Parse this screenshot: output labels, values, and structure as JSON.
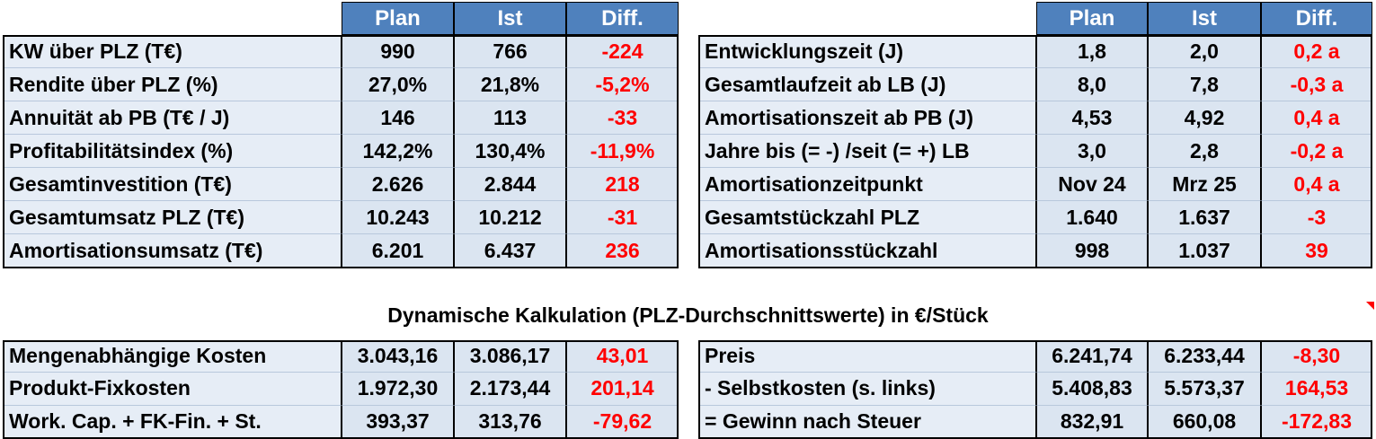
{
  "top_left": {
    "header": [
      "Plan",
      "Ist",
      "Diff."
    ],
    "rows": [
      [
        "KW über PLZ (T€)",
        "990",
        "766",
        "-224"
      ],
      [
        "Rendite über PLZ (%)",
        "27,0%",
        "21,8%",
        "-5,2%"
      ],
      [
        "Annuität ab PB (T€ / J)",
        "146",
        "113",
        "-33"
      ],
      [
        "Profitabilitätsindex (%)",
        "142,2%",
        "130,4%",
        "-11,9%"
      ],
      [
        "Gesamtinvestition (T€)",
        "2.626",
        "2.844",
        "218"
      ],
      [
        "Gesamtumsatz PLZ (T€)",
        "10.243",
        "10.212",
        "-31"
      ],
      [
        "Amortisationsumsatz (T€)",
        "6.201",
        "6.437",
        "236"
      ]
    ]
  },
  "top_right": {
    "header": [
      "Plan",
      "Ist",
      "Diff."
    ],
    "rows": [
      [
        "Entwicklungszeit (J)",
        "1,8",
        "2,0",
        "0,2 a"
      ],
      [
        "Gesamtlaufzeit ab LB (J)",
        "8,0",
        "7,8",
        "-0,3 a"
      ],
      [
        "Amortisationszeit ab PB (J)",
        "4,53",
        "4,92",
        "0,4 a"
      ],
      [
        "Jahre bis (= -) /seit (= +) LB",
        "3,0",
        "2,8",
        "-0,2 a"
      ],
      [
        "Amortisationzeitpunkt",
        "Nov 24",
        "Mrz 25",
        "0,4 a"
      ],
      [
        "Gesamtstückzahl PLZ",
        "1.640",
        "1.637",
        "-3"
      ],
      [
        "Amortisationsstückzahl",
        "998",
        "1.037",
        "39"
      ]
    ]
  },
  "section_title": "Dynamische Kalkulation (PLZ-Durchschnittswerte) in €/Stück",
  "bottom_left": {
    "rows": [
      [
        "Mengenabhängige Kosten",
        "3.043,16",
        "3.086,17",
        "43,01"
      ],
      [
        "Produkt-Fixkosten",
        "1.972,30",
        "2.173,44",
        "201,14"
      ],
      [
        "Work. Cap. + FK-Fin. + St.",
        "393,37",
        "313,76",
        "-79,62"
      ]
    ]
  },
  "bottom_right": {
    "rows": [
      [
        "Preis",
        "6.241,74",
        "6.233,44",
        "-8,30"
      ],
      [
        "- Selbstkosten (s. links)",
        "5.408,83",
        "5.573,37",
        "164,53"
      ],
      [
        "= Gewinn nach Steuer",
        "832,91",
        "660,08",
        "-172,83"
      ]
    ]
  }
}
